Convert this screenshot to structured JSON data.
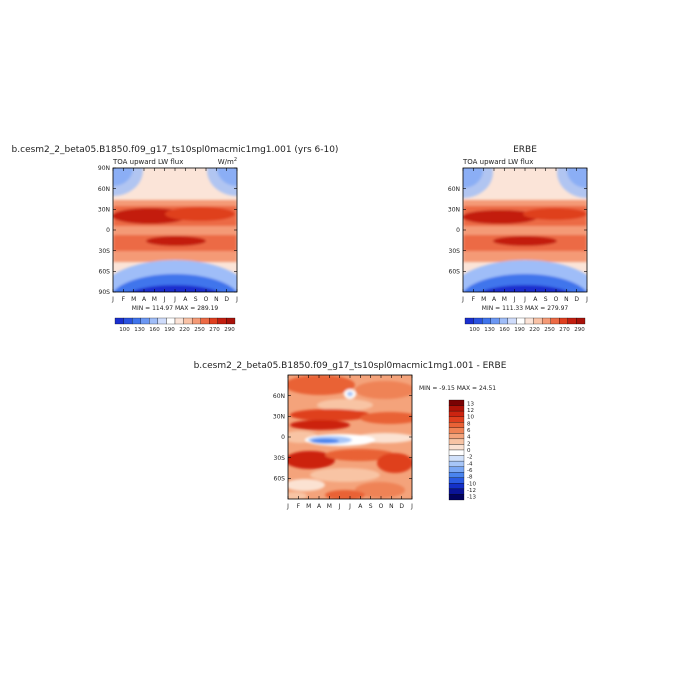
{
  "page": {
    "background": "#ffffff"
  },
  "colors": {
    "cold_scale": [
      "#1a2fcf",
      "#2a52e0",
      "#3f74ec",
      "#6b97f3",
      "#9fbdf8",
      "#cfdcfb"
    ],
    "warm_scale": [
      "#fbe4d8",
      "#f9c2a6",
      "#f49a76",
      "#ec6a45",
      "#df3f1f",
      "#c31e10",
      "#a8120a"
    ],
    "diff_scale": [
      "#02025e",
      "#0a1396",
      "#1430c8",
      "#2a5ae2",
      "#4a84ee",
      "#7aa7f4",
      "#a7c6f8",
      "#d1e1fb",
      "#ffffff",
      "#fbe2d2",
      "#f8c4a4",
      "#f4a37b",
      "#ef8356",
      "#e96236",
      "#df3f1e",
      "#cc2410",
      "#b01308",
      "#7a0203"
    ]
  },
  "chart_data": [
    {
      "type": "heatmap",
      "title": "b.cesm2_2_beta05.B1850.f09_g17_ts10spl0macmic1mg1.001 (yrs 6-10)",
      "subtitle_left": "TOA upward LW flux",
      "units": "W/m",
      "units_superscript": "2",
      "stats": "MIN = 114.97  MAX = 289.19",
      "x_tick_labels": [
        "J",
        "F",
        "M",
        "A",
        "M",
        "J",
        "J",
        "A",
        "S",
        "O",
        "N",
        "D",
        "J"
      ],
      "y_tick_labels": [
        "90N",
        "60N",
        "30N",
        "0",
        "30S",
        "60S",
        "90S"
      ],
      "y_ticks": [
        90,
        60,
        30,
        0,
        -30,
        -60,
        -90
      ],
      "ylim": [
        -90,
        90
      ],
      "colorbar_labels": [
        "100",
        "130",
        "160",
        "190",
        "220",
        "250",
        "270",
        "290"
      ],
      "colorbar_levels": [
        100,
        115,
        130,
        145,
        160,
        175,
        190,
        205,
        220,
        235,
        250,
        260,
        270,
        280,
        290
      ],
      "min": 114.97,
      "max": 289.19
    },
    {
      "type": "heatmap",
      "title": "ERBE",
      "subtitle_left": "TOA upward LW flux",
      "stats": "MIN = 111.33  MAX = 279.97",
      "x_tick_labels": [
        "J",
        "F",
        "M",
        "A",
        "M",
        "J",
        "J",
        "A",
        "S",
        "O",
        "N",
        "D",
        "J"
      ],
      "y_tick_labels": [
        "60N",
        "30N",
        "0",
        "30S",
        "60S"
      ],
      "y_ticks": [
        60,
        30,
        0,
        -30,
        -60
      ],
      "ylim": [
        -90,
        90
      ],
      "colorbar_labels": [
        "100",
        "130",
        "160",
        "190",
        "220",
        "250",
        "270",
        "290"
      ],
      "colorbar_levels": [
        100,
        115,
        130,
        145,
        160,
        175,
        190,
        205,
        220,
        235,
        250,
        260,
        270,
        280,
        290
      ],
      "min": 111.33,
      "max": 279.97
    },
    {
      "type": "heatmap",
      "title": "b.cesm2_2_beta05.B1850.f09_g17_ts10spl0macmic1mg1.001 - ERBE",
      "stats": "MIN = -9.15  MAX =  24.51",
      "x_tick_labels": [
        "J",
        "F",
        "M",
        "A",
        "M",
        "J",
        "J",
        "A",
        "S",
        "O",
        "N",
        "D",
        "J"
      ],
      "y_tick_labels": [
        "60N",
        "30N",
        "0",
        "30S",
        "60S"
      ],
      "y_ticks": [
        60,
        30,
        0,
        -30,
        -60
      ],
      "ylim": [
        -90,
        90
      ],
      "colorbar_labels": [
        "13",
        "12",
        "10",
        "8",
        "6",
        "4",
        "2",
        "0",
        "-2",
        "-4",
        "-6",
        "-8",
        "-10",
        "-12",
        "-13"
      ],
      "min": -9.15,
      "max": 24.51
    }
  ]
}
